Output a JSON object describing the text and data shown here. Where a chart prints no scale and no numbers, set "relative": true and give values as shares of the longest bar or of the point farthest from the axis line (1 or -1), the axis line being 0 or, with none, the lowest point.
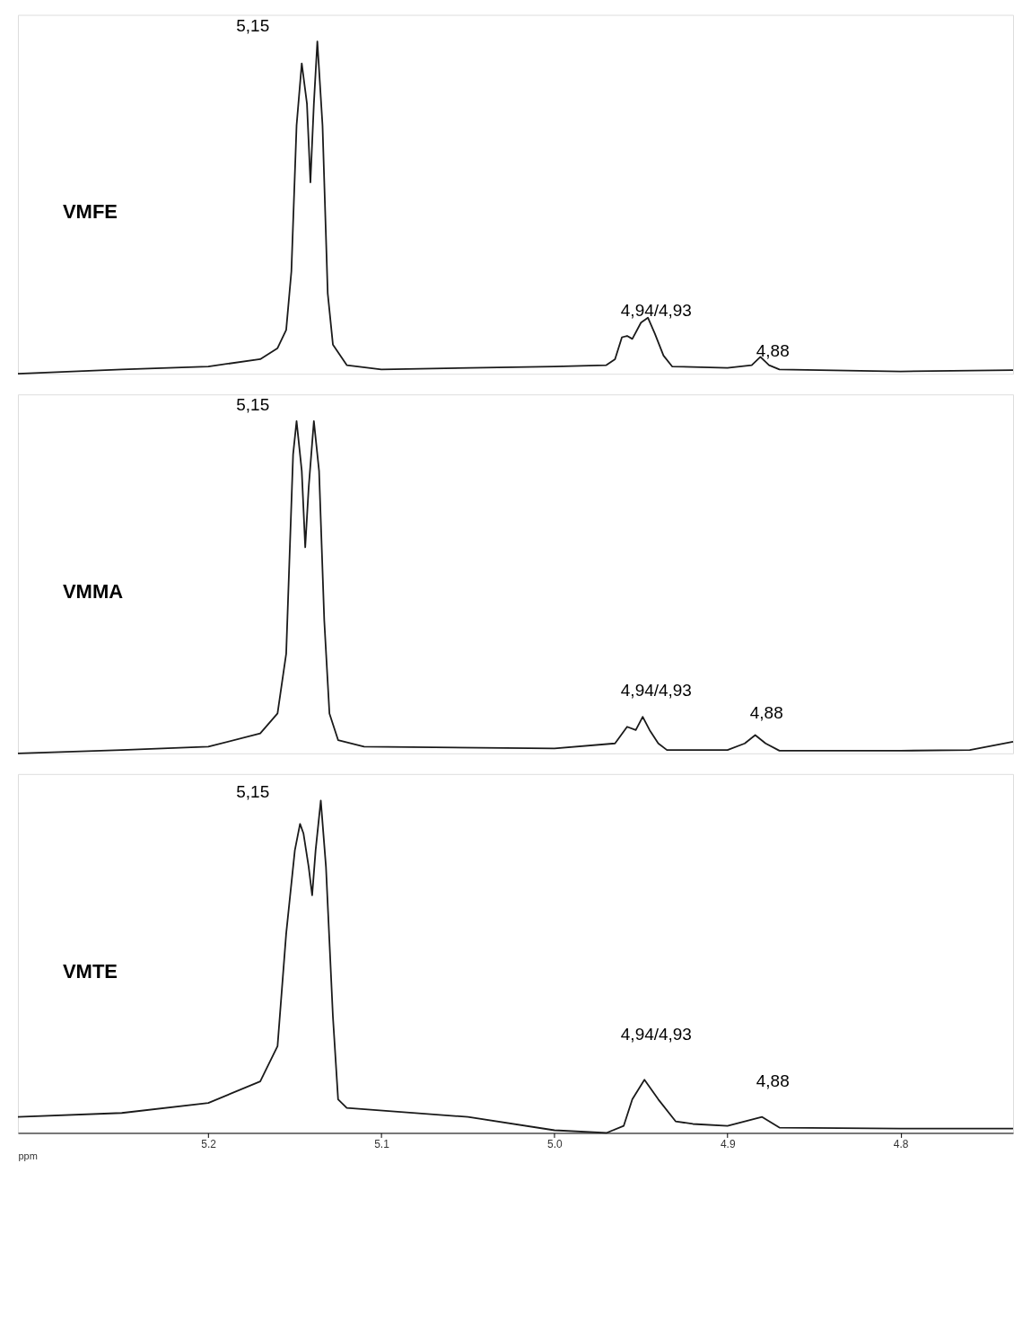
{
  "chart_data": [
    {
      "type": "line",
      "relative": true,
      "xlim": [
        5.31,
        4.735
      ],
      "tick_labels": false,
      "grid": false,
      "x": [
        5.31,
        5.25,
        5.2,
        5.17,
        5.16,
        5.155,
        5.152,
        5.149,
        5.146,
        5.143,
        5.141,
        5.139,
        5.137,
        5.134,
        5.131,
        5.128,
        5.12,
        5.1,
        5.0,
        4.97,
        4.965,
        4.961,
        4.958,
        4.955,
        4.95,
        4.946,
        4.942,
        4.937,
        4.932,
        4.9,
        4.886,
        4.881,
        4.876,
        4.87,
        4.8,
        4.735
      ],
      "series": [
        {
          "name": "VMFE",
          "color": "#1a1a1a",
          "values": [
            0,
            0.013,
            0.022,
            0.044,
            0.077,
            0.132,
            0.308,
            0.747,
            0.934,
            0.813,
            0.576,
            0.813,
            1.0,
            0.747,
            0.242,
            0.088,
            0.026,
            0.013,
            0.022,
            0.026,
            0.044,
            0.11,
            0.114,
            0.105,
            0.154,
            0.169,
            0.121,
            0.055,
            0.022,
            0.018,
            0.026,
            0.051,
            0.026,
            0.013,
            0.007,
            0.011
          ]
        }
      ],
      "annotations": [
        "5,15",
        "4,94/4,93",
        "4,88"
      ]
    },
    {
      "type": "line",
      "relative": true,
      "xlim": [
        5.31,
        4.735
      ],
      "tick_labels": false,
      "grid": false,
      "x": [
        5.31,
        5.25,
        5.2,
        5.17,
        5.16,
        5.155,
        5.153,
        5.151,
        5.149,
        5.146,
        5.144,
        5.142,
        5.139,
        5.136,
        5.133,
        5.13,
        5.125,
        5.11,
        5.0,
        4.965,
        4.958,
        4.953,
        4.949,
        4.945,
        4.94,
        4.935,
        4.9,
        4.89,
        4.884,
        4.878,
        4.87,
        4.8,
        4.76,
        4.735
      ],
      "series": [
        {
          "name": "VMMA",
          "color": "#1a1a1a",
          "values": [
            0,
            0.01,
            0.02,
            0.06,
            0.12,
            0.3,
            0.6,
            0.9,
            1.0,
            0.85,
            0.62,
            0.8,
            1.0,
            0.85,
            0.4,
            0.12,
            0.04,
            0.02,
            0.015,
            0.03,
            0.08,
            0.07,
            0.11,
            0.07,
            0.03,
            0.01,
            0.01,
            0.03,
            0.055,
            0.03,
            0.008,
            0.008,
            0.01,
            0.035
          ]
        }
      ],
      "annotations": [
        "5,15",
        "4,94/4,93",
        "4,88"
      ]
    },
    {
      "type": "line",
      "relative": true,
      "xlim": [
        5.31,
        4.735
      ],
      "tick_labels": "x",
      "grid": false,
      "xlabel": "ppm",
      "xticks": [
        5.2,
        5.1,
        {
          "value": 5.0,
          "label": "5.0"
        },
        4.9,
        4.8
      ],
      "x": [
        5.31,
        5.25,
        5.2,
        5.17,
        5.16,
        5.155,
        5.15,
        5.147,
        5.145,
        5.142,
        5.14,
        5.138,
        5.135,
        5.132,
        5.128,
        5.125,
        5.12,
        5.05,
        5.0,
        4.97,
        4.96,
        4.955,
        4.948,
        4.94,
        4.93,
        4.92,
        4.9,
        4.88,
        4.87,
        4.8,
        4.735
      ],
      "series": [
        {
          "name": "VMTE",
          "color": "#1a1a1a",
          "values": [
            0.048,
            0.06,
            0.09,
            0.155,
            0.261,
            0.6,
            0.85,
            0.93,
            0.901,
            0.8,
            0.715,
            0.85,
            1.0,
            0.8,
            0.35,
            0.101,
            0.075,
            0.048,
            0.008,
            0,
            0.021,
            0.101,
            0.16,
            0.101,
            0.035,
            0.027,
            0.021,
            0.048,
            0.016,
            0.013,
            0.013
          ]
        }
      ],
      "annotations": [
        "5,15",
        "4,94/4,93",
        "4,88"
      ]
    }
  ]
}
